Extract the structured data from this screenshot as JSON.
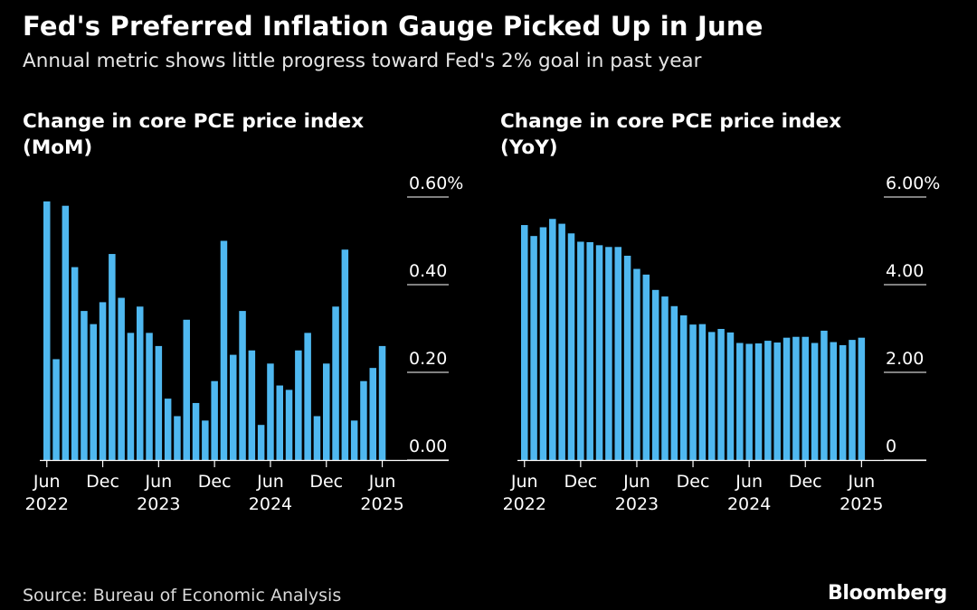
{
  "title": "Fed's Preferred Inflation Gauge Picked Up in June",
  "subtitle": "Annual metric shows little progress toward Fed's 2% goal in past year",
  "source": "Source: Bureau of Economic Analysis",
  "brand": "Bloomberg",
  "colors": {
    "bar": "#4fb8f0",
    "background": "#000000",
    "text": "#ffffff",
    "axis": "#ffffff"
  },
  "chart_data": [
    {
      "type": "bar",
      "title_lines": [
        "Change in core PCE price index",
        "(MoM)"
      ],
      "x_start": "2022-06",
      "x_end": "2025-06",
      "x_ticks": [
        {
          "month": "Jun",
          "year": "2022",
          "index": 0
        },
        {
          "month": "Dec",
          "year": "",
          "index": 6
        },
        {
          "month": "Jun",
          "year": "2023",
          "index": 12
        },
        {
          "month": "Dec",
          "year": "",
          "index": 18
        },
        {
          "month": "Jun",
          "year": "2024",
          "index": 24
        },
        {
          "month": "Dec",
          "year": "",
          "index": 30
        },
        {
          "month": "Jun",
          "year": "2025",
          "index": 36
        }
      ],
      "y_ticks": [
        {
          "value": 0,
          "label": "0.00"
        },
        {
          "value": 0.2,
          "label": "0.20"
        },
        {
          "value": 0.4,
          "label": "0.40"
        },
        {
          "value": 0.6,
          "label": "0.60%"
        }
      ],
      "ylim": [
        0,
        0.6
      ],
      "values": [
        0.59,
        0.23,
        0.58,
        0.44,
        0.34,
        0.31,
        0.36,
        0.47,
        0.37,
        0.29,
        0.35,
        0.29,
        0.26,
        0.14,
        0.1,
        0.32,
        0.13,
        0.09,
        0.18,
        0.5,
        0.24,
        0.34,
        0.25,
        0.08,
        0.22,
        0.17,
        0.16,
        0.25,
        0.29,
        0.1,
        0.22,
        0.35,
        0.48,
        0.09,
        0.18,
        0.21,
        0.26
      ]
    },
    {
      "type": "bar",
      "title_lines": [
        "Change in core PCE price index",
        "(YoY)"
      ],
      "x_start": "2022-06",
      "x_end": "2025-06",
      "x_ticks": [
        {
          "month": "Jun",
          "year": "2022",
          "index": 0
        },
        {
          "month": "Dec",
          "year": "",
          "index": 6
        },
        {
          "month": "Jun",
          "year": "2023",
          "index": 12
        },
        {
          "month": "Dec",
          "year": "",
          "index": 18
        },
        {
          "month": "Jun",
          "year": "2024",
          "index": 24
        },
        {
          "month": "Dec",
          "year": "",
          "index": 30
        },
        {
          "month": "Jun",
          "year": "2025",
          "index": 36
        }
      ],
      "y_ticks": [
        {
          "value": 0,
          "label": "0"
        },
        {
          "value": 2,
          "label": "2.00"
        },
        {
          "value": 4,
          "label": "4.00"
        },
        {
          "value": 6,
          "label": "6.00%"
        }
      ],
      "ylim": [
        0,
        6
      ],
      "values": [
        5.36,
        5.11,
        5.31,
        5.5,
        5.39,
        5.17,
        4.98,
        4.97,
        4.9,
        4.86,
        4.86,
        4.66,
        4.36,
        4.23,
        3.88,
        3.73,
        3.51,
        3.3,
        3.09,
        3.1,
        2.92,
        2.99,
        2.91,
        2.67,
        2.65,
        2.66,
        2.72,
        2.68,
        2.79,
        2.81,
        2.81,
        2.67,
        2.95,
        2.69,
        2.62,
        2.74,
        2.79
      ]
    }
  ]
}
